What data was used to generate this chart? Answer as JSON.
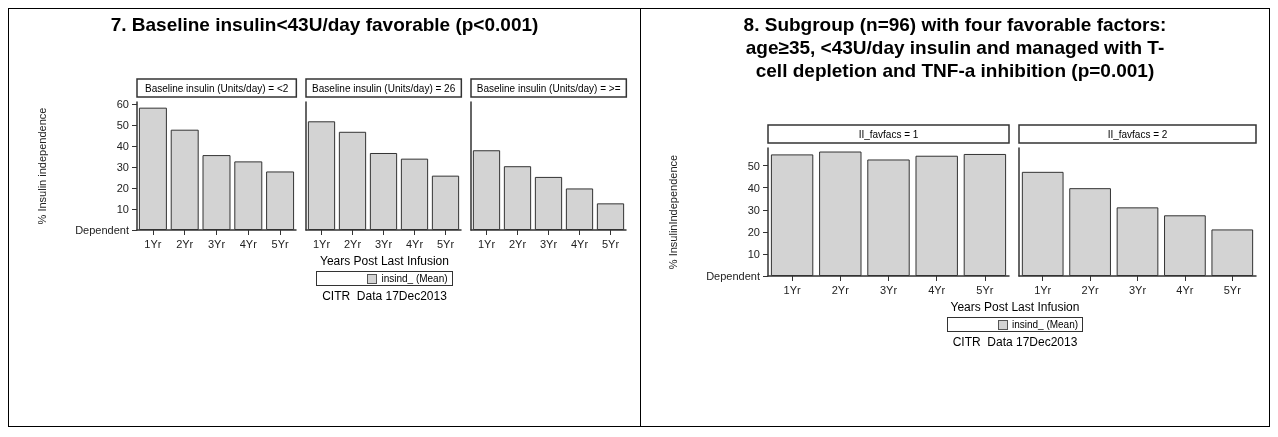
{
  "chart_data": [
    {
      "type": "bar",
      "title": "7. Baseline insulin<43U/day favorable (p<0.001)",
      "subtitle": "Baseline insulin (Units/day) = <2",
      "ylabel": "% Insulin independence",
      "categories": [
        "1Yr",
        "2Yr",
        "3Yr",
        "4Yr",
        "5Yr"
      ],
      "series": [
        {
          "color": "#d3d3d3",
          "values": [
            58.3,
            47.8,
            35.7,
            32.7,
            27.9
          ]
        }
      ],
      "ylim": [
        0,
        61
      ],
      "yticks": [
        {
          "value": 0,
          "label": "Dependent"
        },
        10,
        20,
        30,
        40,
        50,
        60
      ]
    },
    {
      "type": "bar",
      "subtitle": "Baseline insulin (Units/day) = 26",
      "xlabel": "Years Post Last Infusion",
      "categories": [
        "1Yr",
        "2Yr",
        "3Yr",
        "4Yr",
        "5Yr"
      ],
      "series": [
        {
          "name": "insind_ (Mean)",
          "color": "#d3d3d3",
          "values": [
            51.8,
            46.8,
            36.7,
            34.0,
            25.9
          ]
        }
      ],
      "ylim": [
        0,
        61
      ],
      "tick_labels": "x",
      "legend": "bottom",
      "annotations": [
        "CITR  Data 17Dec2013"
      ]
    },
    {
      "type": "bar",
      "subtitle": "Baseline insulin (Units/day) = >=",
      "categories": [
        "1Yr",
        "2Yr",
        "3Yr",
        "4Yr",
        "5Yr"
      ],
      "series": [
        {
          "color": "#d3d3d3",
          "values": [
            38.0,
            30.4,
            25.3,
            19.8,
            12.7
          ]
        }
      ],
      "ylim": [
        0,
        61
      ],
      "tick_labels": "x"
    },
    {
      "type": "bar",
      "title": "8. Subgroup (n=96) with four favorable factors: age≥35, <43U/day insulin and managed with T-cell depletion and TNF-a inhibition (p=0.001)",
      "subtitle": "II_favfacs = 1",
      "ylabel": "% InsulinIndependence",
      "categories": [
        "1Yr",
        "2Yr",
        "3Yr",
        "4Yr",
        "5Yr"
      ],
      "series": [
        {
          "color": "#d3d3d3",
          "values": [
            55.1,
            56.4,
            52.8,
            54.5,
            55.3
          ]
        }
      ],
      "ylim": [
        0,
        58
      ],
      "yticks": [
        {
          "value": 0,
          "label": "Dependent"
        },
        10,
        20,
        30,
        40,
        50
      ]
    },
    {
      "type": "bar",
      "subtitle": "II_favfacs = 2",
      "xlabel": "Years Post Last Infusion",
      "categories": [
        "1Yr",
        "2Yr",
        "3Yr",
        "4Yr",
        "5Yr"
      ],
      "series": [
        {
          "name": "insind_ (Mean)",
          "color": "#d3d3d3",
          "values": [
            47.2,
            39.8,
            31.1,
            27.5,
            21.1
          ]
        }
      ],
      "ylim": [
        0,
        58
      ],
      "tick_labels": "x",
      "legend": "bottom",
      "annotations": [
        "CITR  Data 17Dec2013"
      ]
    }
  ]
}
